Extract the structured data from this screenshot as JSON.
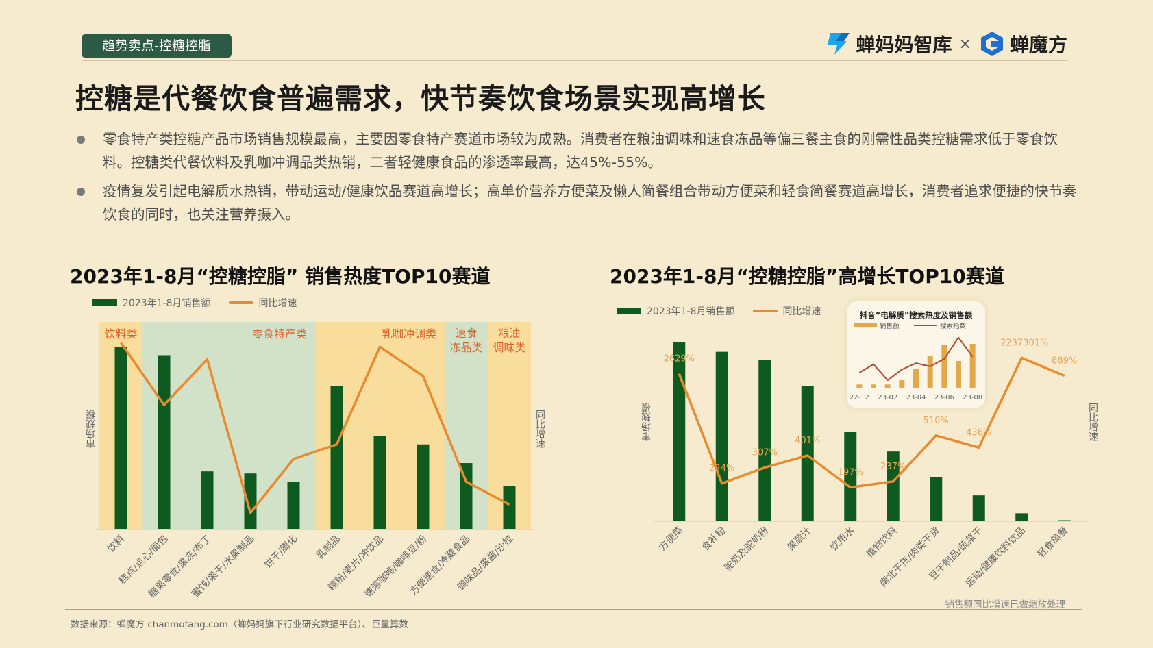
{
  "header": {
    "tag": "趋势卖点-控糖控脂",
    "logo_left": "蝉妈妈智库",
    "logo_sep": "×",
    "logo_right": "蝉魔方"
  },
  "headline": "控糖是代餐饮食普遍需求，快节奏饮食场景实现高增长",
  "bullets": [
    "零食特产类控糖产品市场销售规模最高，主要因零食特产赛道市场较为成熟。消费者在粮油调味和速食冻品等偏三餐主食的刚需性品类控糖需求低于零食饮料。控糖类代餐饮料及乳咖冲调品类热销，二者轻健康食品的渗透率最高，达45%-55%。",
    "疫情复发引起电解质水热销，带动运动/健康饮品赛道高增长；高单价营养方便菜及懒人简餐组合带动方便菜和轻食简餐赛道高增长，消费者追求便捷的快节奏饮食的同时，也关注营养摄入。"
  ],
  "colors": {
    "bar": "#0f5b1f",
    "line": "#ea8a2e",
    "band_yellow": "#f8dc9a",
    "band_green": "#cfe2c7",
    "band_label": "#d9622b",
    "inset_bar": "#e3a84a",
    "inset_line": "#b3472b"
  },
  "chart_data": [
    {
      "type": "bar",
      "title": "2023年1-8月“控糖控脂” 销售热度TOP10赛道",
      "ylabel": "市场规模",
      "y2label": "同比增速",
      "legend": [
        "2023年1-8月销售额",
        "同比增速"
      ],
      "categories": [
        "饮料",
        "糕点/点心/面包",
        "糖果零食/果冻/布丁",
        "蜜饯/果干/水果制品",
        "饼干/膨化",
        "乳制品",
        "糯粉/麦片/冲饮品",
        "速溶咖啡/咖啡豆/粉",
        "方便速食/冷藏食品",
        "调味品/果酱/沙拉"
      ],
      "bands": [
        {
          "label": "饮料类",
          "from": 0,
          "to": 0,
          "color": "yellow"
        },
        {
          "label": "零食特产类",
          "from": 1,
          "to": 4,
          "color": "green"
        },
        {
          "label": "乳咖冲调类",
          "from": 5,
          "to": 7,
          "color": "yellow"
        },
        {
          "label": "速食冻品类",
          "from": 8,
          "to": 8,
          "color": "green"
        },
        {
          "label": "粮油调味类",
          "from": 9,
          "to": 9,
          "color": "yellow"
        }
      ],
      "series": [
        {
          "name": "2023年1-8月销售额",
          "kind": "bar",
          "values": [
            88,
            84,
            28,
            27,
            23,
            69,
            45,
            41,
            32,
            21
          ]
        },
        {
          "name": "同比增速",
          "kind": "line",
          "values": [
            90,
            60,
            82,
            8,
            34,
            41,
            88,
            74,
            23,
            12
          ]
        }
      ],
      "ylim": [
        0,
        100
      ]
    },
    {
      "type": "bar",
      "title": "2023年1-8月“控糖控脂”高增长TOP10赛道",
      "ylabel": "市场规模",
      "y2label": "同比增速",
      "legend": [
        "2023年1-8月销售额",
        "同比增速"
      ],
      "categories": [
        "方便菜",
        "食补粉",
        "驼奶及驼奶粉",
        "果蔬汁",
        "饮用水",
        "植物饮料",
        "南北干货/肉类干货",
        "豆干制品/蔬菜干",
        "运动/健康饮料饮品",
        "轻食简餐"
      ],
      "series": [
        {
          "name": "2023年1-8月销售额",
          "kind": "bar",
          "values": [
            90,
            85,
            81,
            68,
            45,
            35,
            22,
            13,
            4,
            0.5
          ]
        },
        {
          "name": "同比增速",
          "kind": "line",
          "values": [
            74,
            19,
            27,
            33,
            17,
            20,
            43,
            37,
            82,
            73
          ],
          "labels": [
            "2629%",
            "224%",
            "307%",
            "401%",
            "197%",
            "237%",
            "510%",
            "436%",
            "2237301%",
            "889%"
          ]
        }
      ],
      "ylim": [
        0,
        100
      ],
      "note": "销售额同比增速已做缩放处理"
    },
    {
      "type": "bar",
      "title": "抖音“电解质”搜索热度及销售额",
      "legend": [
        "销售额",
        "搜索指数"
      ],
      "categories": [
        "22-12",
        "",
        "23-02",
        "",
        "23-04",
        "",
        "23-06",
        "",
        "23-08"
      ],
      "series": [
        {
          "name": "销售额",
          "kind": "bar",
          "values": [
            6,
            6,
            6,
            14,
            36,
            60,
            80,
            50,
            82
          ]
        },
        {
          "name": "搜索指数",
          "kind": "line",
          "values": [
            28,
            44,
            14,
            34,
            46,
            40,
            54,
            94,
            58
          ]
        }
      ],
      "ylim": [
        0,
        100
      ]
    }
  ],
  "footer": {
    "source": "数据来源：蝉魔方 chanmofang.com（蝉妈妈旗下行业研究数据平台）、巨量算数",
    "note": "销售额同比增速已做缩放处理"
  }
}
